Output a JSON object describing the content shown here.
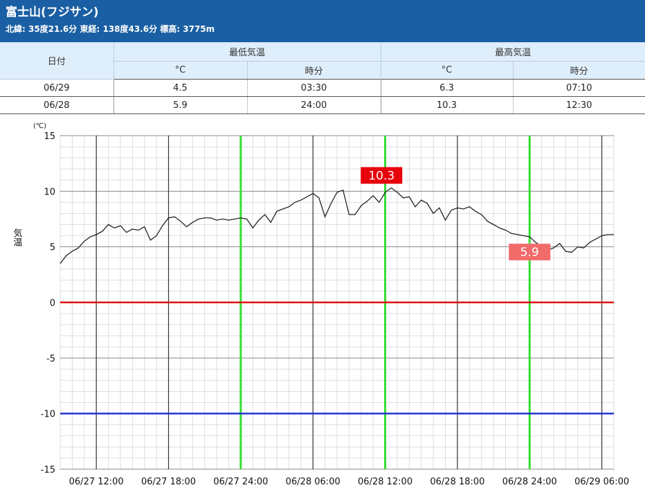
{
  "header": {
    "title": "富士山(フジサン)",
    "coords": "北緯: 35度21.6分 東経: 138度43.6分 標高: 3775m"
  },
  "table": {
    "date_header": "日付",
    "min_group": "最低気温",
    "max_group": "最高気温",
    "sub_unit": "°C",
    "sub_time": "時分",
    "rows": [
      {
        "date": "06/29",
        "min_c": "4.5",
        "min_time": "03:30",
        "max_c": "6.3",
        "max_time": "07:10"
      },
      {
        "date": "06/28",
        "min_c": "5.9",
        "min_time": "24:00",
        "max_c": "10.3",
        "max_time": "12:30"
      }
    ]
  },
  "chart_data": {
    "type": "line",
    "ylabel": "気温",
    "yunit": "(℃)",
    "ylim": [
      -15,
      15
    ],
    "yticks": [
      "15",
      "10",
      "5",
      "0",
      "-5",
      "-10",
      "-15"
    ],
    "xlim": [
      "06/27 09:00",
      "06/29 07:00"
    ],
    "xticks": [
      "06/27 12:00",
      "06/27 18:00",
      "06/27 24:00",
      "06/28 06:00",
      "06/28 12:00",
      "06/28 18:00",
      "06/28 24:00",
      "06/29 06:00"
    ],
    "reference_lines": [
      {
        "value": 0,
        "color": "#e01010"
      },
      {
        "value": -10,
        "color": "#2233cc"
      }
    ],
    "day_lines": [
      "06/27 24:00",
      "06/28 12:00",
      "06/28 24:00"
    ],
    "day_line_color": "#33dd33",
    "annotations": [
      {
        "text": "10.3",
        "x": "06/28 12:30",
        "color": "#e8000b"
      },
      {
        "text": "5.9",
        "x": "06/28 24:00",
        "color": "#f26b6b"
      }
    ],
    "series": [
      {
        "color": "#222222",
        "points": [
          [
            "06/27 09:00",
            3.5
          ],
          [
            "06/27 09:30",
            4.2
          ],
          [
            "06/27 10:00",
            4.6
          ],
          [
            "06/27 10:30",
            4.9
          ],
          [
            "06/27 11:00",
            5.5
          ],
          [
            "06/27 11:30",
            5.9
          ],
          [
            "06/27 12:00",
            6.1
          ],
          [
            "06/27 12:30",
            6.4
          ],
          [
            "06/27 13:00",
            7.0
          ],
          [
            "06/27 13:30",
            6.7
          ],
          [
            "06/27 14:00",
            6.9
          ],
          [
            "06/27 14:30",
            6.3
          ],
          [
            "06/27 15:00",
            6.6
          ],
          [
            "06/27 15:30",
            6.5
          ],
          [
            "06/27 16:00",
            6.8
          ],
          [
            "06/27 16:30",
            5.6
          ],
          [
            "06/27 17:00",
            6.0
          ],
          [
            "06/27 17:30",
            6.9
          ],
          [
            "06/27 18:00",
            7.6
          ],
          [
            "06/27 18:30",
            7.7
          ],
          [
            "06/27 19:00",
            7.3
          ],
          [
            "06/27 19:30",
            6.8
          ],
          [
            "06/27 20:00",
            7.2
          ],
          [
            "06/27 20:30",
            7.5
          ],
          [
            "06/27 21:00",
            7.6
          ],
          [
            "06/27 21:30",
            7.6
          ],
          [
            "06/27 22:00",
            7.4
          ],
          [
            "06/27 22:30",
            7.5
          ],
          [
            "06/27 23:00",
            7.4
          ],
          [
            "06/27 23:30",
            7.5
          ],
          [
            "06/28 00:00",
            7.6
          ],
          [
            "06/28 00:30",
            7.5
          ],
          [
            "06/28 01:00",
            6.7
          ],
          [
            "06/28 01:30",
            7.4
          ],
          [
            "06/28 02:00",
            7.9
          ],
          [
            "06/28 02:30",
            7.2
          ],
          [
            "06/28 03:00",
            8.2
          ],
          [
            "06/28 03:30",
            8.4
          ],
          [
            "06/28 04:00",
            8.6
          ],
          [
            "06/28 04:30",
            9.0
          ],
          [
            "06/28 05:00",
            9.2
          ],
          [
            "06/28 05:30",
            9.5
          ],
          [
            "06/28 06:00",
            9.8
          ],
          [
            "06/28 06:30",
            9.4
          ],
          [
            "06/28 07:00",
            7.7
          ],
          [
            "06/28 07:30",
            8.9
          ],
          [
            "06/28 08:00",
            9.9
          ],
          [
            "06/28 08:30",
            10.1
          ],
          [
            "06/28 09:00",
            7.9
          ],
          [
            "06/28 09:30",
            7.9
          ],
          [
            "06/28 10:00",
            8.7
          ],
          [
            "06/28 10:30",
            9.1
          ],
          [
            "06/28 11:00",
            9.6
          ],
          [
            "06/28 11:30",
            9.0
          ],
          [
            "06/28 12:00",
            9.9
          ],
          [
            "06/28 12:30",
            10.3
          ],
          [
            "06/28 13:00",
            9.9
          ],
          [
            "06/28 13:30",
            9.4
          ],
          [
            "06/28 14:00",
            9.5
          ],
          [
            "06/28 14:30",
            8.6
          ],
          [
            "06/28 15:00",
            9.2
          ],
          [
            "06/28 15:30",
            8.9
          ],
          [
            "06/28 16:00",
            8.0
          ],
          [
            "06/28 16:30",
            8.5
          ],
          [
            "06/28 17:00",
            7.4
          ],
          [
            "06/28 17:30",
            8.3
          ],
          [
            "06/28 18:00",
            8.5
          ],
          [
            "06/28 18:30",
            8.4
          ],
          [
            "06/28 19:00",
            8.6
          ],
          [
            "06/28 19:30",
            8.2
          ],
          [
            "06/28 20:00",
            7.9
          ],
          [
            "06/28 20:30",
            7.3
          ],
          [
            "06/28 21:00",
            7.0
          ],
          [
            "06/28 21:30",
            6.7
          ],
          [
            "06/28 22:00",
            6.5
          ],
          [
            "06/28 22:30",
            6.2
          ],
          [
            "06/28 23:00",
            6.1
          ],
          [
            "06/28 23:30",
            6.0
          ],
          [
            "06/29 00:00",
            5.9
          ],
          [
            "06/29 00:30",
            5.4
          ],
          [
            "06/29 01:00",
            5.0
          ],
          [
            "06/29 01:30",
            4.7
          ],
          [
            "06/29 02:00",
            4.9
          ],
          [
            "06/29 02:30",
            5.3
          ],
          [
            "06/29 03:00",
            4.6
          ],
          [
            "06/29 03:30",
            4.5
          ],
          [
            "06/29 04:00",
            5.0
          ],
          [
            "06/29 04:30",
            4.9
          ],
          [
            "06/29 05:00",
            5.4
          ],
          [
            "06/29 05:30",
            5.7
          ],
          [
            "06/29 06:00",
            6.0
          ],
          [
            "06/29 06:30",
            6.1
          ],
          [
            "06/29 07:00",
            6.1
          ]
        ]
      }
    ]
  }
}
